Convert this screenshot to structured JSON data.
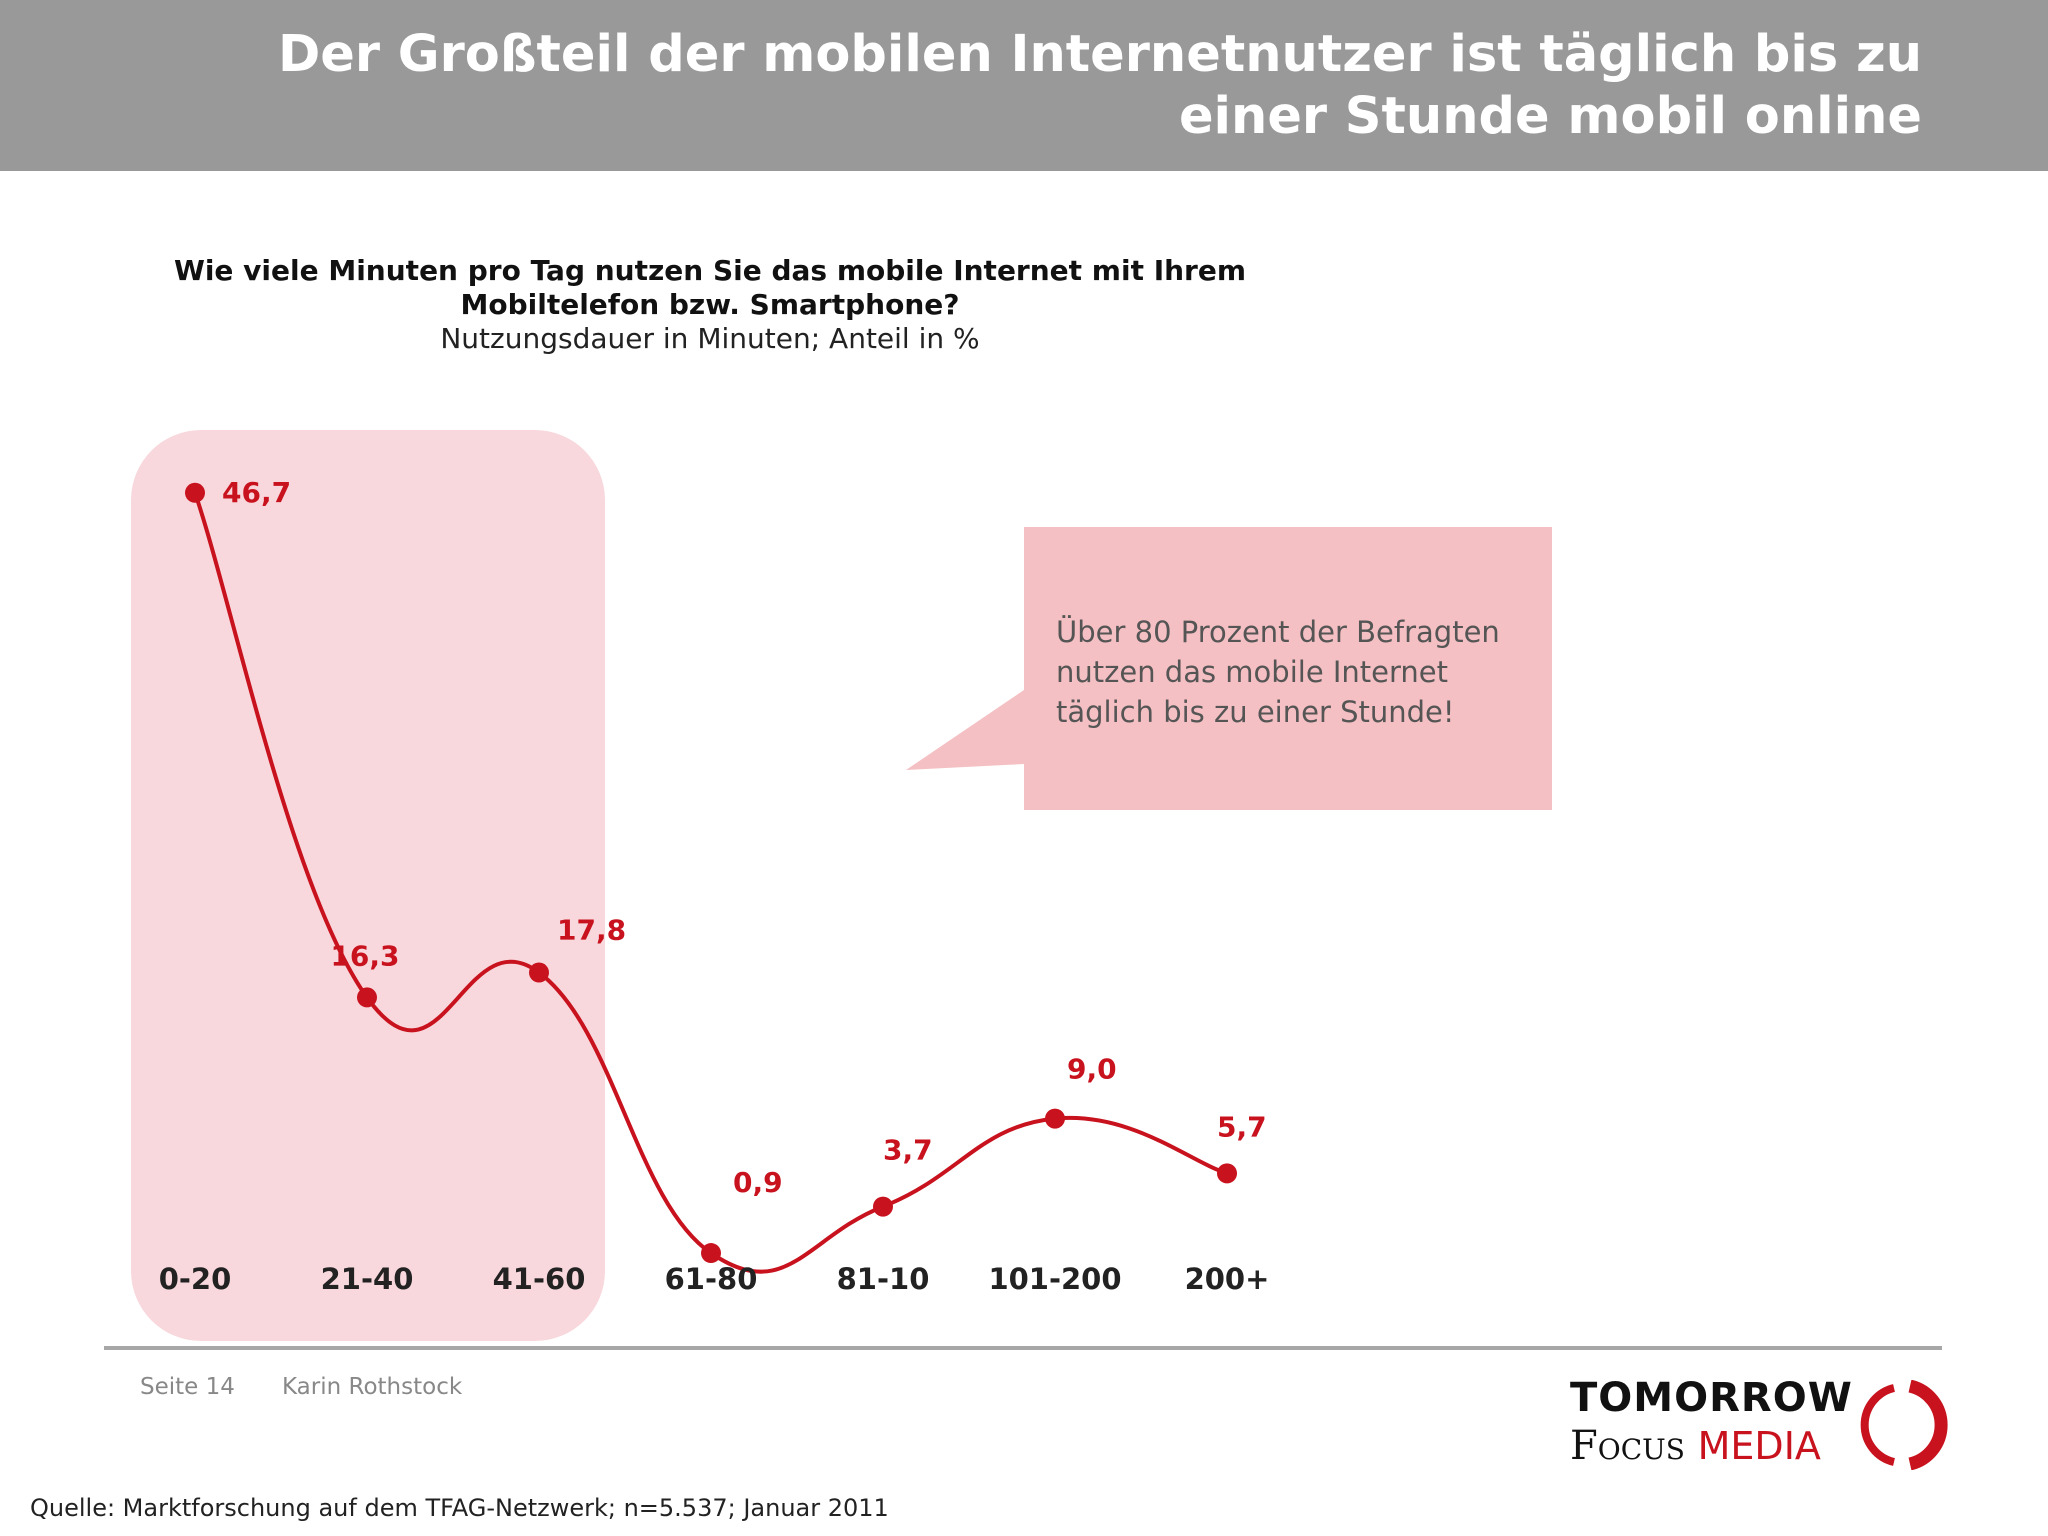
{
  "header": {
    "title_line1": "Der Großteil der mobilen Internetnutzer ist täglich bis zu",
    "title_line2": "einer Stunde mobil online"
  },
  "question": {
    "line1": "Wie viele Minuten pro Tag nutzen Sie das mobile Internet mit Ihrem",
    "line2": "Mobiltelefon bzw. Smartphone?",
    "subtitle": "Nutzungsdauer in Minuten; Anteil in %"
  },
  "callout": {
    "line1": "Über 80 Prozent der Befragten",
    "line2": "nutzen das mobile Internet",
    "line3": "täglich bis zu einer Stunde!"
  },
  "footer": {
    "page": "Seite 14",
    "author": "Karin Rothstock",
    "source": "Quelle: Marktforschung auf dem TFAG-Netzwerk; n=5.537; Januar 2011"
  },
  "logo": {
    "top": "TOMORROW",
    "bottom_focus": "Focus",
    "bottom_media": "MEDIA"
  },
  "colors": {
    "header_bg": "#999999",
    "line": "#c8121e",
    "highlight": "#f8d8dc",
    "callout_bg": "#f4c0c3"
  },
  "chart_data": {
    "type": "line",
    "categories": [
      "0-20",
      "21-40",
      "41-60",
      "61-80",
      "81-10",
      "101-200",
      "200+"
    ],
    "values": [
      46.7,
      16.3,
      17.8,
      0.9,
      3.7,
      9.0,
      5.7
    ],
    "value_labels": [
      "46,7",
      "16,3",
      "17,8",
      "0,9",
      "3,7",
      "9,0",
      "5,7"
    ],
    "ylim": [
      0,
      50
    ],
    "highlighted_categories": [
      "0-20",
      "21-40",
      "41-60"
    ],
    "grid": false
  }
}
